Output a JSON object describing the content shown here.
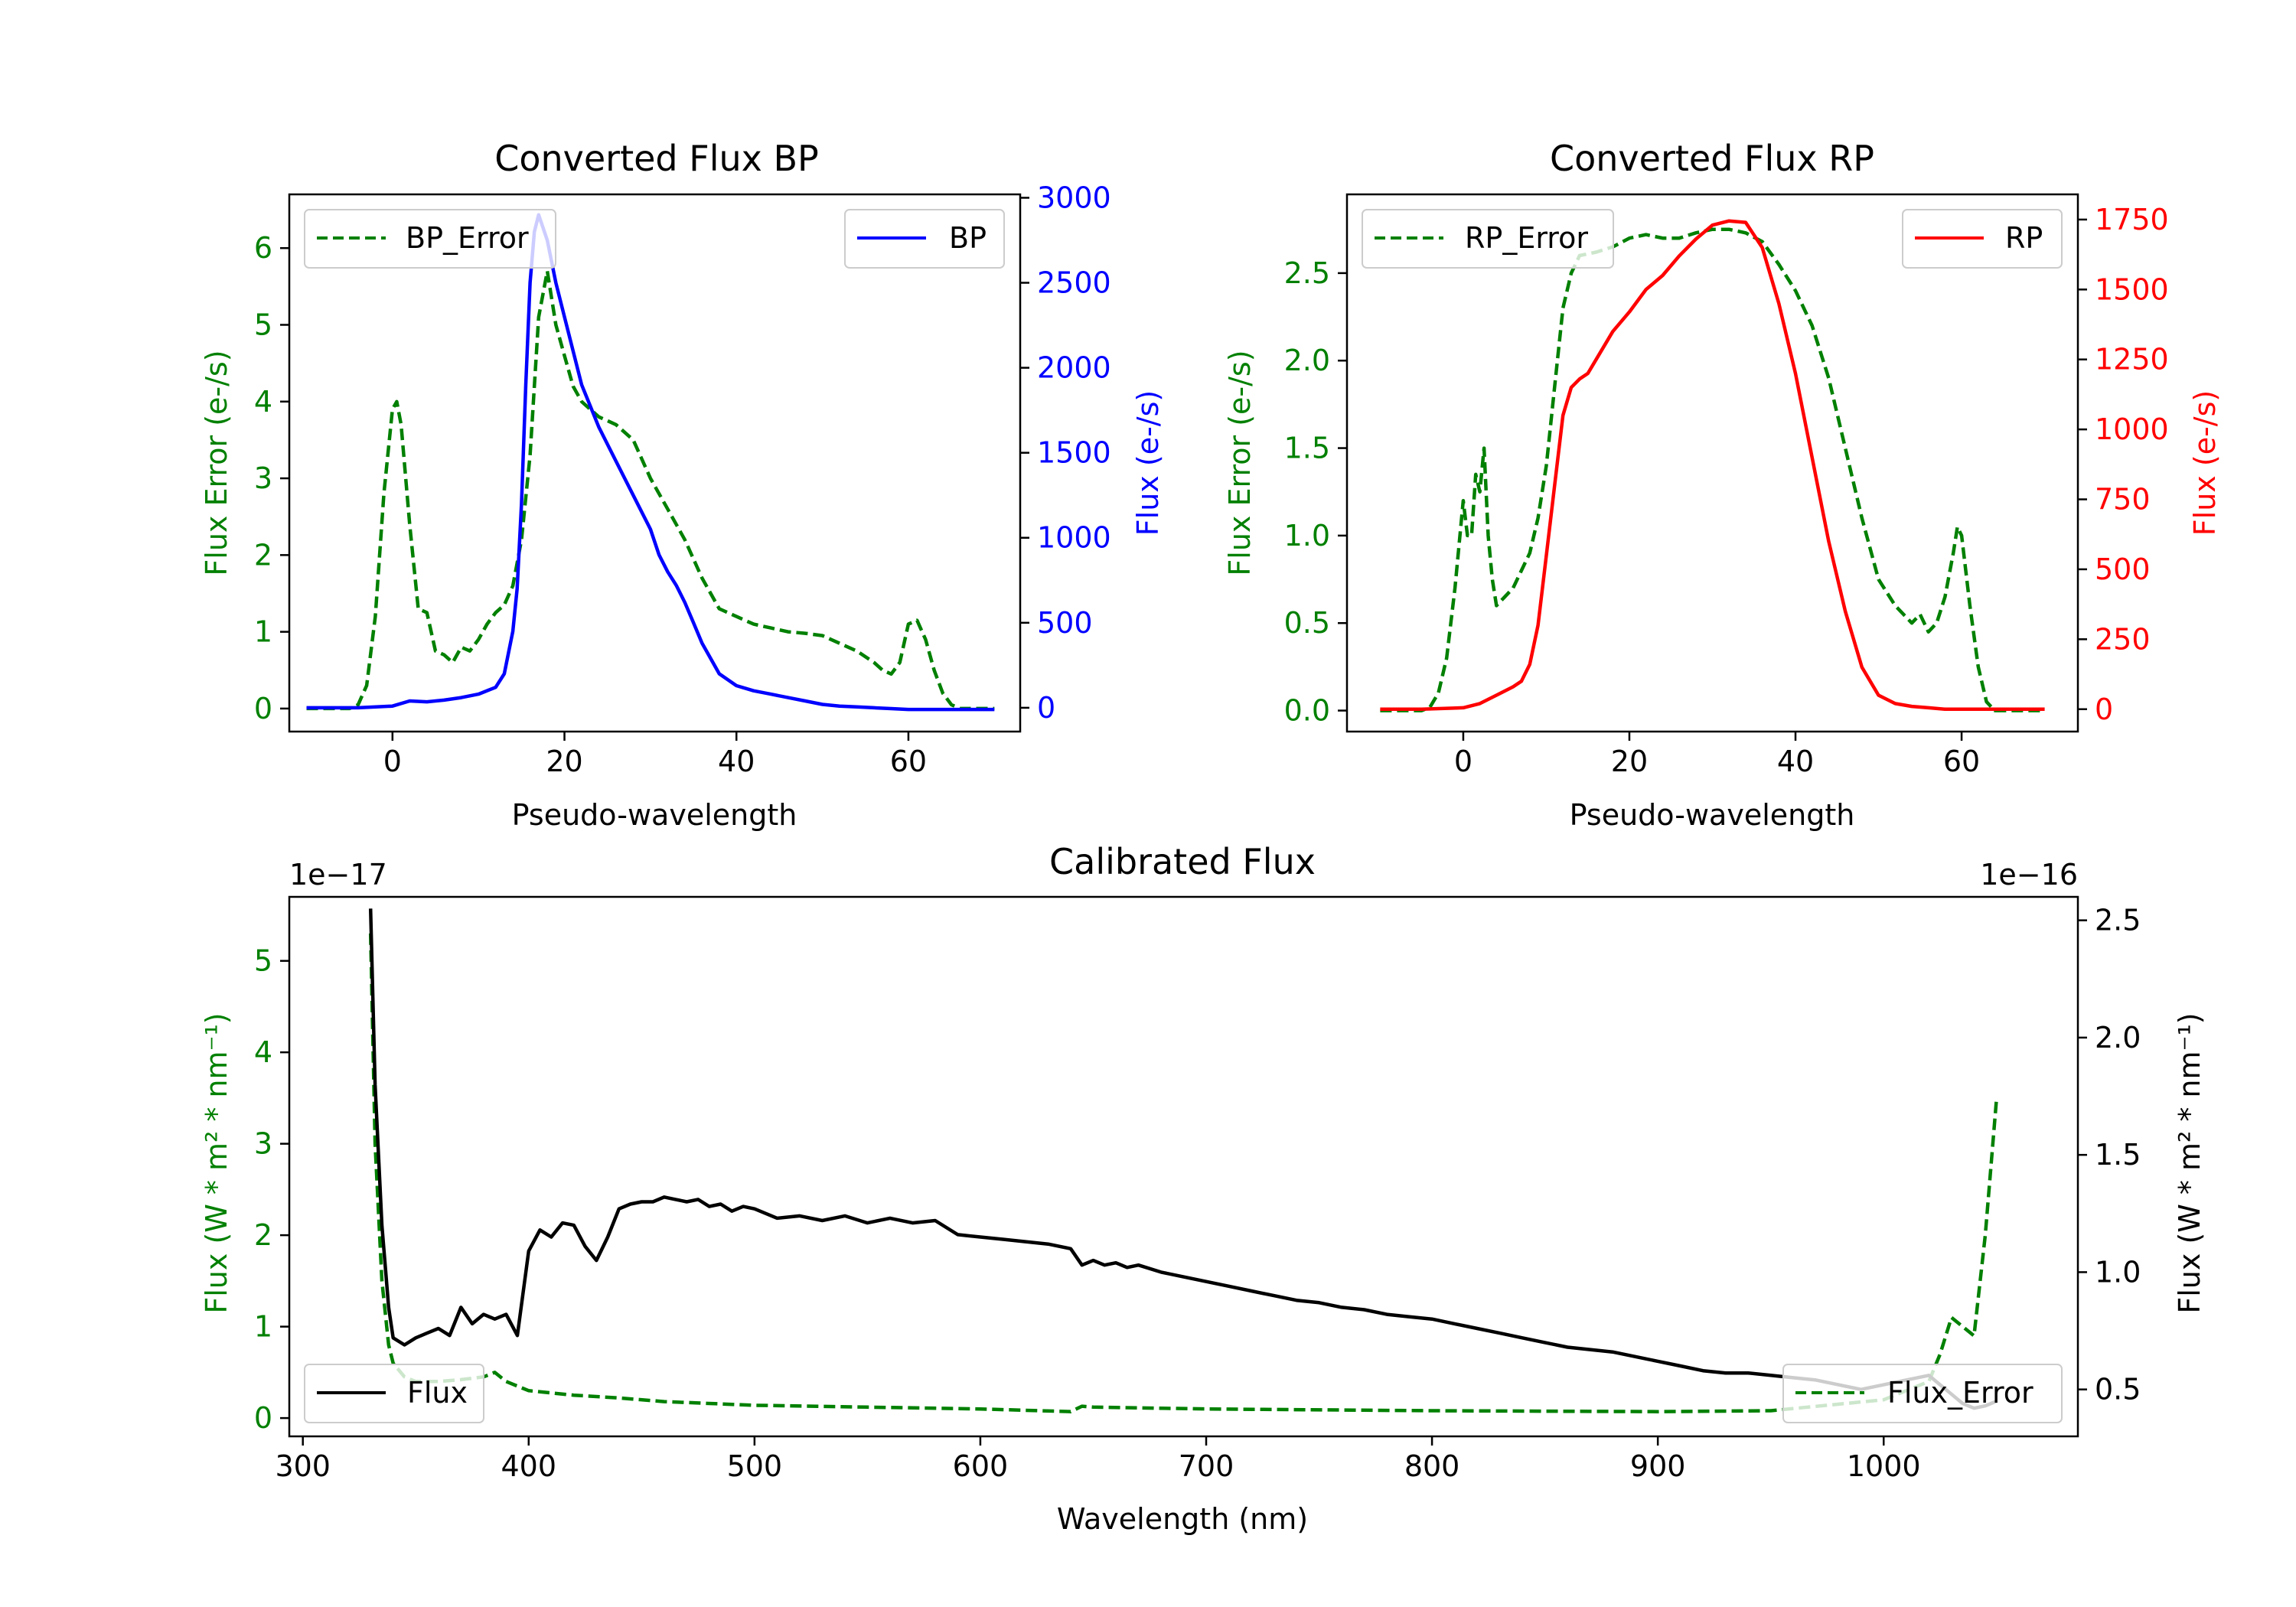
{
  "chart_data": [
    {
      "type": "line",
      "title": "Converted Flux BP",
      "xlabel": "Pseudo-wavelength",
      "ylabel_left": "Flux Error (e-/s)",
      "ylabel_right": "Flux (e-/s)",
      "xlim": [
        -12,
        73
      ],
      "ylim_left": [
        -0.3,
        6.7
      ],
      "ylim_right": [
        -140,
        3020
      ],
      "xticks": [
        0,
        20,
        40,
        60
      ],
      "xtick_labels": [
        "0",
        "20",
        "40",
        "60"
      ],
      "yticks_left": [
        0,
        1,
        2,
        3,
        4,
        5,
        6
      ],
      "ytick_labels_left": [
        "0",
        "1",
        "2",
        "3",
        "4",
        "5",
        "6"
      ],
      "yticks_right": [
        0,
        500,
        1000,
        1500,
        2000,
        2500,
        3000
      ],
      "ytick_labels_right": [
        "0",
        "500",
        "1000",
        "1500",
        "2000",
        "2500",
        "3000"
      ],
      "left_color": "#008000",
      "right_color": "#0000ff",
      "legend_left": "upper-left",
      "legend_right": "upper-right",
      "series": [
        {
          "name": "BP_Error",
          "axis": "left",
          "style": "dashed",
          "color": "#008000",
          "x": [
            -10,
            -5,
            -4,
            -3,
            -2,
            -1,
            0,
            0.5,
            1,
            2,
            3,
            4,
            5,
            6,
            7,
            8,
            9,
            10,
            11,
            12,
            13,
            14,
            15,
            16,
            17,
            18,
            19,
            20,
            21,
            22,
            23,
            24,
            25,
            26,
            27,
            28,
            30,
            32,
            34,
            36,
            38,
            40,
            42,
            44,
            46,
            48,
            50,
            52,
            54,
            56,
            57,
            58,
            59,
            60,
            61,
            62,
            63,
            64,
            65,
            66,
            68,
            70
          ],
          "y": [
            0,
            0,
            0.05,
            0.3,
            1.2,
            2.8,
            3.9,
            4.0,
            3.7,
            2.4,
            1.3,
            1.25,
            0.75,
            0.7,
            0.6,
            0.8,
            0.75,
            0.9,
            1.1,
            1.25,
            1.35,
            1.6,
            2.2,
            3.3,
            5.1,
            5.7,
            5.0,
            4.6,
            4.2,
            4.0,
            3.9,
            3.8,
            3.75,
            3.7,
            3.6,
            3.5,
            3.0,
            2.6,
            2.2,
            1.7,
            1.3,
            1.2,
            1.1,
            1.05,
            1.0,
            0.98,
            0.95,
            0.85,
            0.75,
            0.6,
            0.5,
            0.45,
            0.6,
            1.1,
            1.15,
            0.9,
            0.5,
            0.2,
            0.05,
            0,
            0,
            0
          ]
        },
        {
          "name": "BP",
          "axis": "right",
          "style": "solid",
          "color": "#0000ff",
          "x": [
            -10,
            -4,
            0,
            2,
            4,
            6,
            8,
            10,
            12,
            13,
            14,
            14.5,
            15,
            15.5,
            16,
            16.5,
            17,
            18,
            19,
            20,
            22,
            24,
            26,
            28,
            30,
            31,
            32,
            33,
            34,
            35,
            36,
            38,
            40,
            42,
            44,
            46,
            48,
            50,
            52,
            54,
            56,
            58,
            60,
            62,
            64,
            66,
            68,
            70
          ],
          "y": [
            0,
            0,
            10,
            40,
            35,
            45,
            60,
            80,
            120,
            200,
            450,
            700,
            1200,
            1900,
            2500,
            2800,
            2900,
            2750,
            2500,
            2300,
            1900,
            1650,
            1450,
            1250,
            1050,
            900,
            800,
            720,
            620,
            500,
            380,
            200,
            130,
            100,
            80,
            60,
            40,
            20,
            10,
            5,
            0,
            -5,
            -10,
            -10,
            -10,
            -10,
            -10,
            -10
          ]
        }
      ]
    },
    {
      "type": "line",
      "title": "Converted Flux RP",
      "xlabel": "Pseudo-wavelength",
      "ylabel_left": "Flux Error (e-/s)",
      "ylabel_right": "Flux (e-/s)",
      "xlim": [
        -14,
        74
      ],
      "ylim_left": [
        -0.12,
        2.95
      ],
      "ylim_right": [
        -80,
        1840
      ],
      "xticks": [
        0,
        20,
        40,
        60
      ],
      "xtick_labels": [
        "0",
        "20",
        "40",
        "60"
      ],
      "yticks_left": [
        0.0,
        0.5,
        1.0,
        1.5,
        2.0,
        2.5
      ],
      "ytick_labels_left": [
        "0.0",
        "0.5",
        "1.0",
        "1.5",
        "2.0",
        "2.5"
      ],
      "yticks_right": [
        0,
        250,
        500,
        750,
        1000,
        1250,
        1500,
        1750
      ],
      "ytick_labels_right": [
        "0",
        "250",
        "500",
        "750",
        "1000",
        "1250",
        "1500",
        "1750"
      ],
      "left_color": "#008000",
      "right_color": "#ff0000",
      "legend_left": "upper-left",
      "legend_right": "upper-right",
      "series": [
        {
          "name": "RP_Error",
          "axis": "left",
          "style": "dashed",
          "color": "#008000",
          "x": [
            -10,
            -5,
            -4,
            -3,
            -2,
            -1,
            0,
            0.5,
            1,
            1.5,
            2,
            2.5,
            3,
            3.5,
            4,
            5,
            6,
            7,
            8,
            9,
            10,
            11,
            12,
            13,
            14,
            16,
            18,
            20,
            22,
            24,
            26,
            28,
            30,
            32,
            34,
            36,
            38,
            40,
            42,
            44,
            46,
            48,
            50,
            52,
            54,
            55,
            56,
            57,
            58,
            59,
            59.5,
            60,
            61,
            62,
            63,
            64,
            66,
            70
          ],
          "y": [
            0,
            0,
            0.02,
            0.1,
            0.3,
            0.7,
            1.2,
            1.0,
            1.0,
            1.35,
            1.25,
            1.5,
            1.0,
            0.75,
            0.6,
            0.65,
            0.7,
            0.8,
            0.9,
            1.1,
            1.4,
            1.85,
            2.3,
            2.5,
            2.6,
            2.62,
            2.65,
            2.7,
            2.72,
            2.7,
            2.7,
            2.73,
            2.75,
            2.75,
            2.73,
            2.68,
            2.55,
            2.4,
            2.2,
            1.9,
            1.5,
            1.1,
            0.75,
            0.6,
            0.5,
            0.55,
            0.45,
            0.5,
            0.65,
            0.9,
            1.05,
            1.0,
            0.6,
            0.25,
            0.05,
            0,
            0,
            0
          ]
        },
        {
          "name": "RP",
          "axis": "right",
          "style": "solid",
          "color": "#ff0000",
          "x": [
            -10,
            -5,
            0,
            2,
            4,
            6,
            7,
            8,
            9,
            10,
            11,
            12,
            13,
            14,
            15,
            16,
            18,
            20,
            22,
            24,
            26,
            28,
            30,
            32,
            34,
            36,
            38,
            40,
            42,
            44,
            46,
            48,
            50,
            52,
            54,
            56,
            58,
            60,
            65,
            70
          ],
          "y": [
            0,
            0,
            5,
            20,
            50,
            80,
            100,
            160,
            300,
            550,
            800,
            1050,
            1150,
            1180,
            1200,
            1250,
            1350,
            1420,
            1500,
            1550,
            1620,
            1680,
            1730,
            1745,
            1740,
            1650,
            1450,
            1200,
            900,
            600,
            350,
            150,
            50,
            20,
            10,
            5,
            0,
            0,
            0,
            0
          ]
        }
      ]
    },
    {
      "type": "line",
      "title": "Calibrated Flux",
      "xlabel": "Wavelength (nm)",
      "ylabel_left": "Flux (W * m$^2$ * nm$^{-1}$)",
      "ylabel_right": "Flux (W * m$^2$ * nm$^{-1}$)",
      "ylabel_display": "Flux (W * m² * nm⁻¹)",
      "offset_left": "1e−17",
      "offset_right": "1e−16",
      "xlim": [
        294,
        1086
      ],
      "ylim_left": [
        -0.2,
        5.7
      ],
      "ylim_right": [
        0.3,
        2.6
      ],
      "xticks": [
        300,
        400,
        500,
        600,
        700,
        800,
        900,
        1000
      ],
      "xtick_labels": [
        "300",
        "400",
        "500",
        "600",
        "700",
        "800",
        "900",
        "1000"
      ],
      "yticks_left": [
        0,
        1,
        2,
        3,
        4,
        5
      ],
      "ytick_labels_left": [
        "0",
        "1",
        "2",
        "3",
        "4",
        "5"
      ],
      "yticks_right": [
        0.5,
        1.0,
        1.5,
        2.0,
        2.5
      ],
      "ytick_labels_right": [
        "0.5",
        "1.0",
        "1.5",
        "2.0",
        "2.5"
      ],
      "left_color": "#008000",
      "right_color": "#000000",
      "legend_left": "lower-left",
      "legend_right": "lower-right",
      "series": [
        {
          "name": "Flux_Error",
          "axis": "left",
          "style": "dashed",
          "color": "#008000",
          "x": [
            330,
            332,
            335,
            338,
            340,
            345,
            350,
            360,
            370,
            380,
            385,
            390,
            400,
            420,
            440,
            460,
            500,
            550,
            600,
            640,
            645,
            650,
            700,
            800,
            900,
            950,
            1000,
            1020,
            1025,
            1030,
            1035,
            1040,
            1045,
            1050
          ],
          "y": [
            5.3,
            3.0,
            1.5,
            0.8,
            0.6,
            0.45,
            0.4,
            0.4,
            0.42,
            0.45,
            0.5,
            0.4,
            0.3,
            0.25,
            0.22,
            0.18,
            0.14,
            0.12,
            0.1,
            0.07,
            0.13,
            0.12,
            0.1,
            0.08,
            0.07,
            0.08,
            0.2,
            0.4,
            0.7,
            1.1,
            1.0,
            0.9,
            2.0,
            3.5
          ]
        },
        {
          "name": "Flux",
          "axis": "right",
          "style": "solid",
          "color": "#000000",
          "x": [
            330,
            332,
            335,
            338,
            340,
            345,
            350,
            355,
            360,
            365,
            370,
            375,
            380,
            385,
            390,
            395,
            400,
            405,
            410,
            415,
            420,
            425,
            430,
            435,
            440,
            445,
            450,
            455,
            460,
            465,
            470,
            475,
            480,
            485,
            490,
            495,
            500,
            510,
            520,
            530,
            540,
            550,
            560,
            570,
            580,
            590,
            600,
            610,
            620,
            630,
            640,
            645,
            650,
            655,
            660,
            665,
            670,
            680,
            690,
            700,
            710,
            720,
            730,
            740,
            750,
            760,
            770,
            780,
            790,
            800,
            810,
            820,
            830,
            840,
            850,
            860,
            870,
            880,
            890,
            900,
            910,
            920,
            930,
            940,
            950,
            960,
            970,
            980,
            990,
            1000,
            1010,
            1020,
            1025,
            1030,
            1035,
            1040,
            1045,
            1050
          ],
          "y": [
            2.55,
            1.8,
            1.2,
            0.85,
            0.72,
            0.69,
            0.72,
            0.74,
            0.76,
            0.73,
            0.85,
            0.78,
            0.82,
            0.8,
            0.82,
            0.73,
            1.09,
            1.18,
            1.15,
            1.21,
            1.2,
            1.11,
            1.05,
            1.15,
            1.27,
            1.29,
            1.3,
            1.3,
            1.32,
            1.31,
            1.3,
            1.31,
            1.28,
            1.29,
            1.26,
            1.28,
            1.27,
            1.23,
            1.24,
            1.22,
            1.24,
            1.21,
            1.23,
            1.21,
            1.22,
            1.16,
            1.15,
            1.14,
            1.13,
            1.12,
            1.1,
            1.03,
            1.05,
            1.03,
            1.04,
            1.02,
            1.03,
            1.0,
            0.98,
            0.96,
            0.94,
            0.92,
            0.9,
            0.88,
            0.87,
            0.85,
            0.84,
            0.82,
            0.81,
            0.8,
            0.78,
            0.76,
            0.74,
            0.72,
            0.7,
            0.68,
            0.67,
            0.66,
            0.64,
            0.62,
            0.6,
            0.58,
            0.57,
            0.57,
            0.56,
            0.55,
            0.54,
            0.52,
            0.5,
            0.52,
            0.54,
            0.56,
            0.52,
            0.48,
            0.44,
            0.42,
            0.43,
            0.45
          ]
        }
      ]
    }
  ]
}
